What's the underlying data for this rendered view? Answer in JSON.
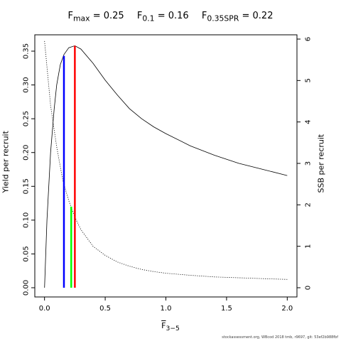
{
  "title": {
    "fmax_label": "F",
    "fmax_sub": "max",
    "fmax_value": "= 0.25",
    "f01_label": "F",
    "f01_sub": "0.1",
    "f01_value": "= 0.16",
    "fspr_label": "F",
    "fspr_sub": "0.35SPR",
    "fspr_value": "= 0.22"
  },
  "footer": "stockassessment.org, WBcod 2018 tmb, r9697, git: 53ef2b988fbf",
  "chart_data": {
    "type": "line",
    "xlabel_main": "F",
    "xlabel_sub": "3−5",
    "ylabel_left": "Yield per recruit",
    "ylabel_right": "SSB per recruit",
    "xlim": [
      0,
      2
    ],
    "ylim_left": [
      0,
      0.36
    ],
    "ylim_right": [
      0,
      6
    ],
    "x_ticks": [
      0,
      0.5,
      1,
      1.5,
      2
    ],
    "x_tick_labels": [
      "0.0",
      "0.5",
      "1.0",
      "1.5",
      "2.0"
    ],
    "y_left_ticks": [
      0,
      0.05,
      0.1,
      0.15,
      0.2,
      0.25,
      0.3,
      0.35
    ],
    "y_left_tick_labels": [
      "0.00",
      "0.05",
      "0.10",
      "0.15",
      "0.20",
      "0.25",
      "0.30",
      "0.35"
    ],
    "y_right_ticks": [
      0,
      1,
      2,
      3,
      4,
      5,
      6
    ],
    "y_right_tick_labels": [
      "0",
      "1",
      "2",
      "3",
      "4",
      "5",
      "6"
    ],
    "series": [
      {
        "axis": "left",
        "style": "solid",
        "color": "#000000",
        "x": [
          0,
          0.02,
          0.05,
          0.08,
          0.1,
          0.13,
          0.16,
          0.2,
          0.25,
          0.3,
          0.4,
          0.5,
          0.6,
          0.7,
          0.8,
          0.9,
          1.0,
          1.2,
          1.4,
          1.6,
          1.8,
          2.0
        ],
        "y": [
          0,
          0.1,
          0.2,
          0.265,
          0.3,
          0.33,
          0.345,
          0.355,
          0.358,
          0.353,
          0.332,
          0.307,
          0.285,
          0.265,
          0.25,
          0.238,
          0.228,
          0.21,
          0.196,
          0.184,
          0.175,
          0.166
        ]
      },
      {
        "axis": "right",
        "style": "dotted",
        "color": "#000000",
        "x": [
          0,
          0.05,
          0.1,
          0.15,
          0.2,
          0.25,
          0.3,
          0.4,
          0.5,
          0.6,
          0.7,
          0.8,
          0.9,
          1.0,
          1.2,
          1.4,
          1.6,
          1.8,
          2.0
        ],
        "y": [
          5.95,
          4.4,
          3.4,
          2.6,
          2.1,
          1.7,
          1.4,
          1.0,
          0.78,
          0.62,
          0.52,
          0.44,
          0.39,
          0.35,
          0.3,
          0.26,
          0.24,
          0.22,
          0.2
        ]
      }
    ],
    "reference_lines": [
      {
        "x": 0.16,
        "y_top": 0.343,
        "axis": "left",
        "color": "#0000ff"
      },
      {
        "x": 0.22,
        "y_top": 0.12,
        "axis": "left",
        "color": "#00ff00"
      },
      {
        "x": 0.25,
        "y_top": 0.358,
        "axis": "left",
        "color": "#ff0000"
      }
    ]
  }
}
